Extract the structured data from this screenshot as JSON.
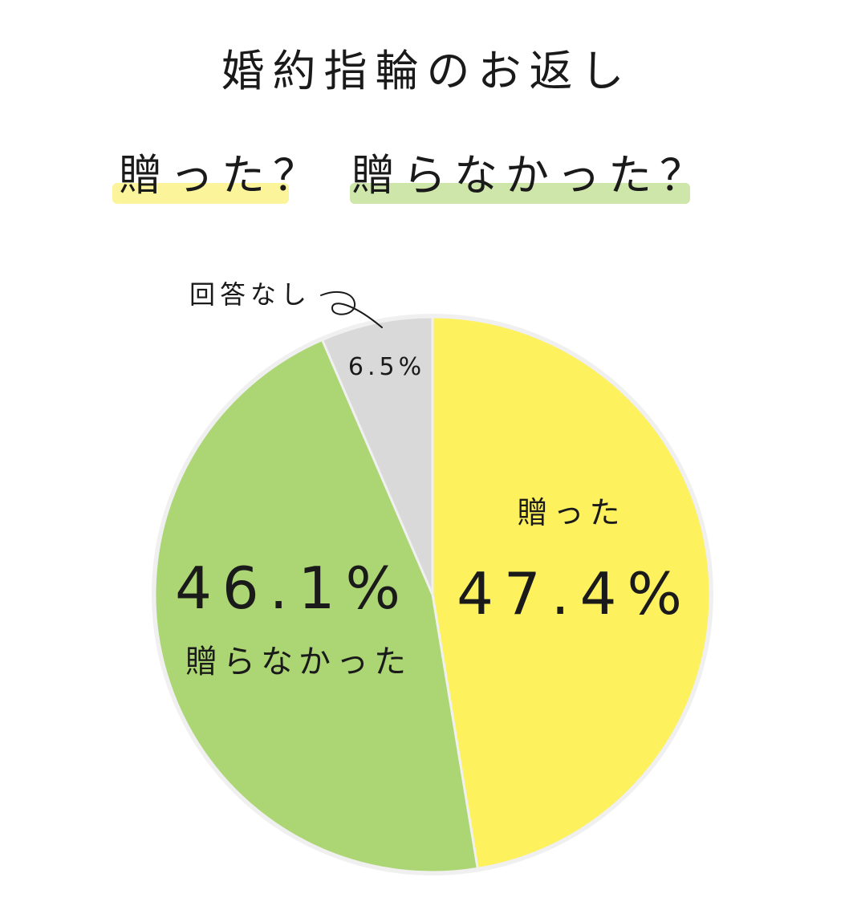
{
  "title": {
    "line1": "婚約指輪のお返し",
    "line2_part1": "贈った？",
    "line2_part2": "贈らなかった？",
    "highlight_colors": [
      "#fcf49a",
      "#cfe6ab"
    ]
  },
  "chart_data": {
    "type": "pie",
    "slices": [
      {
        "name": "贈った",
        "value": 47.4,
        "value_label": "47.4%",
        "color": "#fdf15e"
      },
      {
        "name": "贈らなかった",
        "value": 46.1,
        "value_label": "46.1%",
        "color": "#acd574"
      },
      {
        "name": "回答なし",
        "value": 6.5,
        "value_label": "6.5%",
        "color": "#d9d9d9"
      }
    ],
    "start_angle": "12 o'clock",
    "direction": "clockwise",
    "border_color": "#f0f0f0"
  }
}
